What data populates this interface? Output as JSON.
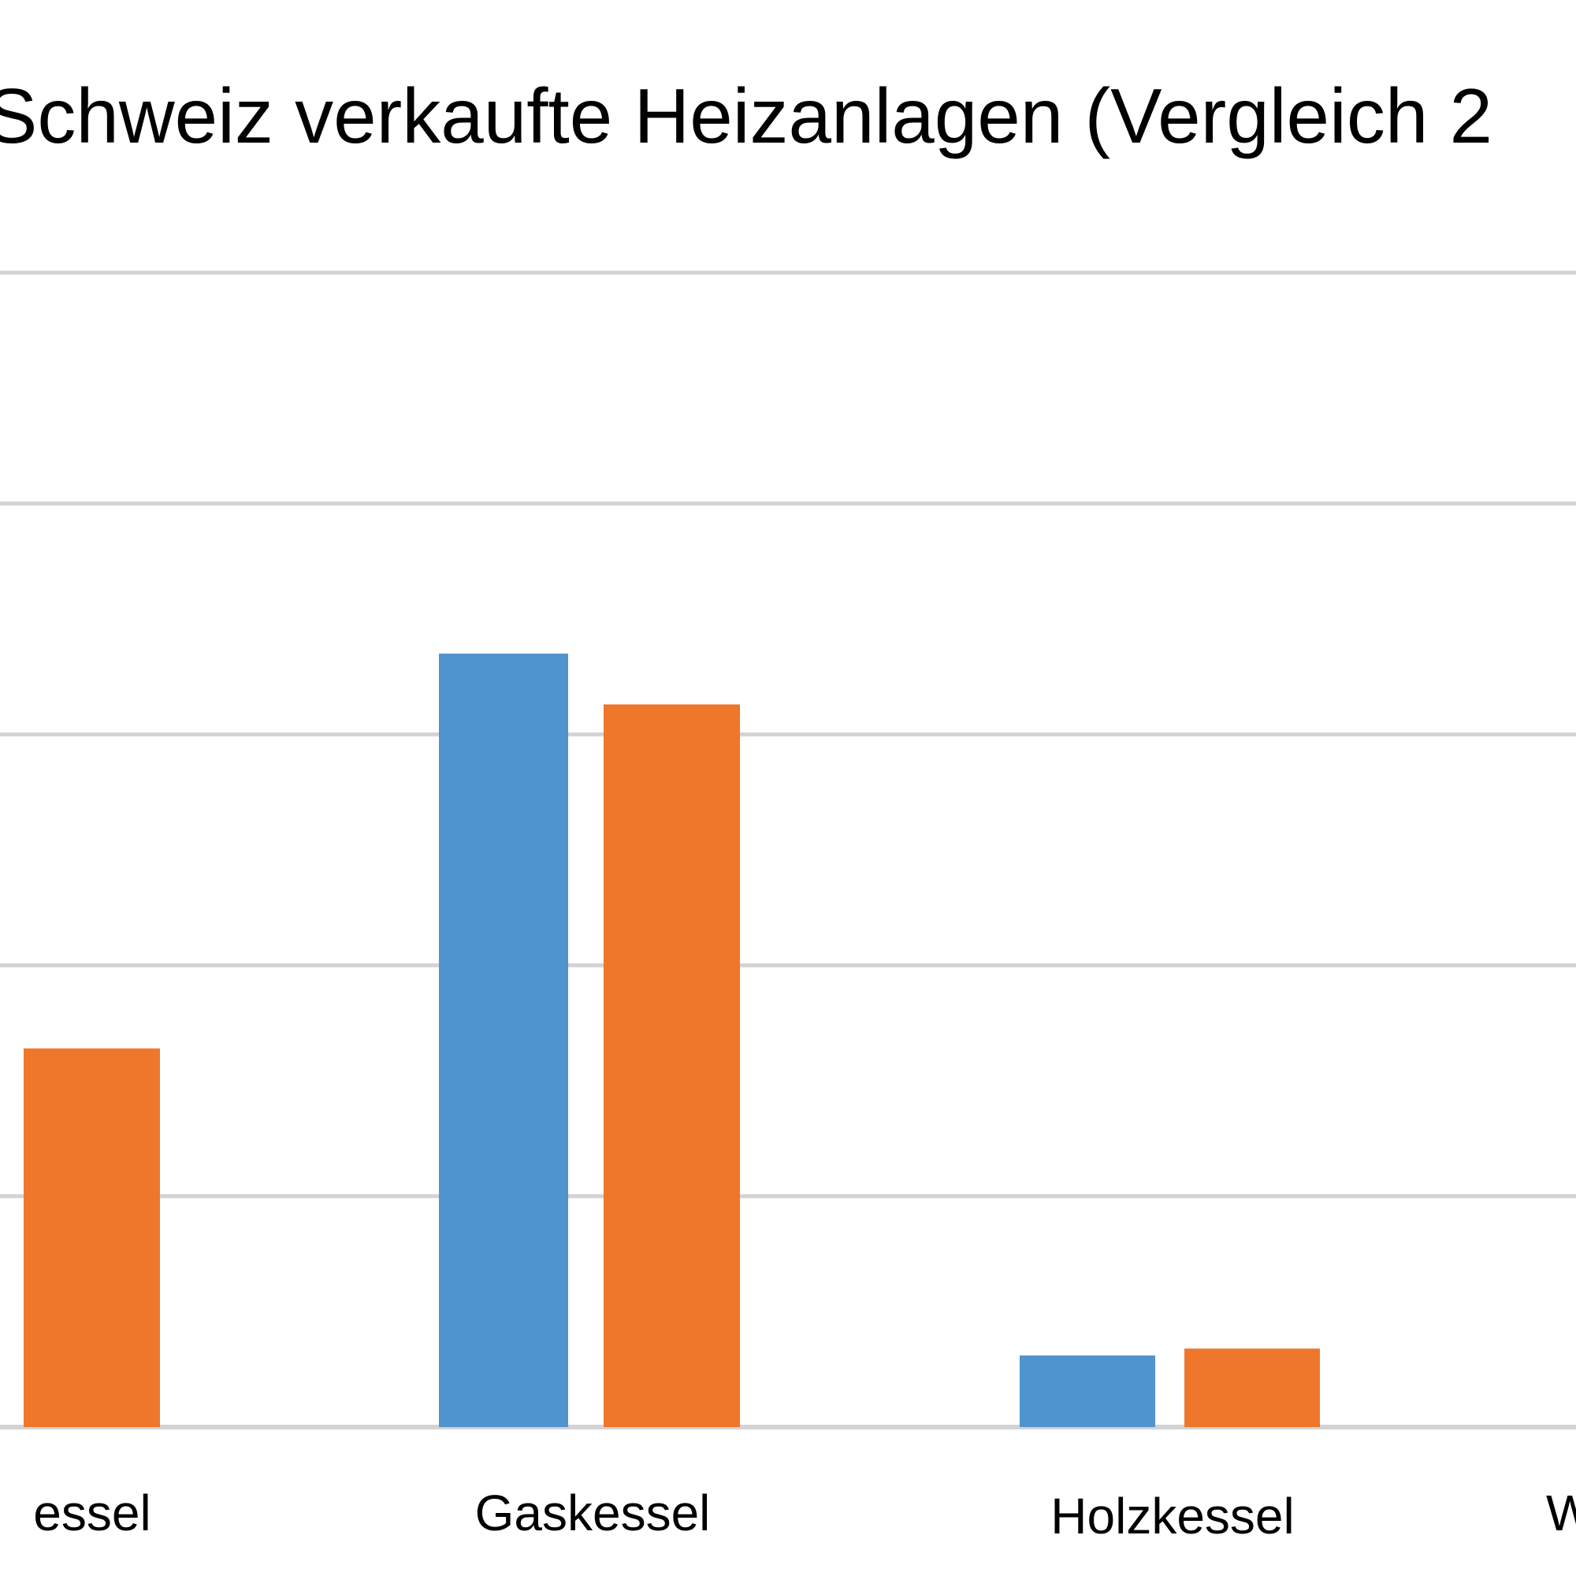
{
  "chart_data": {
    "type": "bar",
    "title": "Schweiz verkaufte Heizanlagen (Vergleich 2",
    "categories": [
      "essel",
      "Gaskessel",
      "Holzkessel",
      "W"
    ],
    "series": [
      {
        "color": "#4f93cf",
        "values": [
          null,
          3350,
          310,
          null
        ]
      },
      {
        "color": "#ee772b",
        "values": [
          1640,
          3130,
          340,
          null
        ]
      }
    ],
    "ylim": [
      0,
      5000
    ],
    "yticks": [
      0,
      1000,
      2000,
      3000,
      4000,
      5000
    ],
    "grid": true,
    "gridline_color": "#d3d3d3"
  }
}
